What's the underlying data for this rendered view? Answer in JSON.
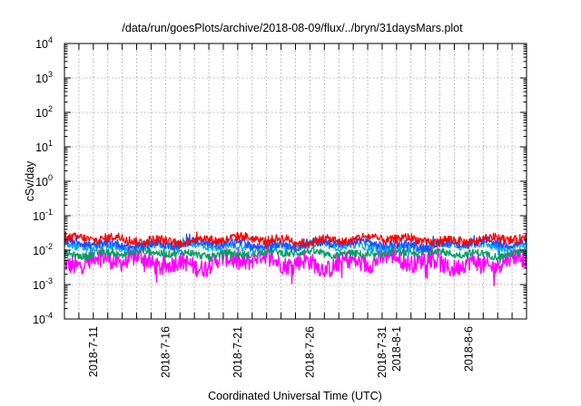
{
  "chart_data": {
    "type": "line",
    "title": "/data/run/goesPlots/archive/2018-08-09/flux/../bryn/31daysMars.plot",
    "xlabel": "Coordinated Universal Time (UTC)",
    "ylabel": "cSv/day",
    "y_scale": "log",
    "ylim": [
      0.0001,
      10000
    ],
    "y_ticks": [
      {
        "value": 0.0001,
        "base": "10",
        "exp": "-4"
      },
      {
        "value": 0.001,
        "base": "10",
        "exp": "-3"
      },
      {
        "value": 0.01,
        "base": "10",
        "exp": "-2"
      },
      {
        "value": 0.1,
        "base": "10",
        "exp": "-1"
      },
      {
        "value": 1,
        "base": "10",
        "exp": "0"
      },
      {
        "value": 10,
        "base": "10",
        "exp": "1"
      },
      {
        "value": 100,
        "base": "10",
        "exp": "2"
      },
      {
        "value": 1000,
        "base": "10",
        "exp": "3"
      },
      {
        "value": 10000,
        "base": "10",
        "exp": "4"
      }
    ],
    "xlim": [
      "2018-07-09",
      "2018-08-10"
    ],
    "x_ticks": [
      "2018-7-11",
      "2018-7-16",
      "2018-7-21",
      "2018-7-26",
      "2018-7-31",
      "2018-8-1",
      "2018-8-6"
    ],
    "x_tick_dates": [
      "2018-07-11",
      "2018-07-16",
      "2018-07-21",
      "2018-07-26",
      "2018-07-31",
      "2018-08-01",
      "2018-08-06"
    ],
    "grid": true,
    "legend": "none",
    "series": [
      {
        "color": "#ff0000",
        "level_min": 0.012,
        "level_max": 0.035,
        "typical": 0.02
      },
      {
        "color": "#1f4fff",
        "level_min": 0.009,
        "level_max": 0.025,
        "typical": 0.015
      },
      {
        "color": "#00aaff",
        "level_min": 0.008,
        "level_max": 0.02,
        "typical": 0.013
      },
      {
        "color": "#00a060",
        "level_min": 0.005,
        "level_max": 0.012,
        "typical": 0.008
      },
      {
        "color": "#ff00ff",
        "level_min": 0.001,
        "level_max": 0.009,
        "typical": 0.0045
      }
    ]
  }
}
